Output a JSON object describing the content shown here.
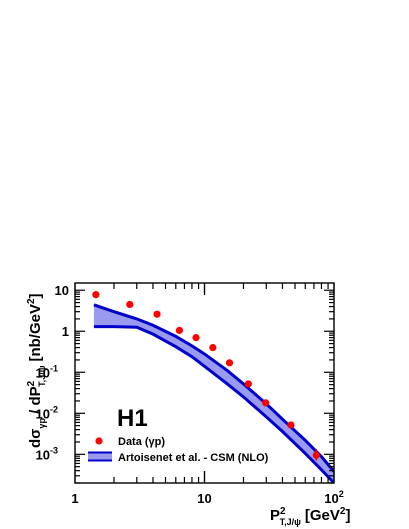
{
  "chart_data": {
    "type": "scatter",
    "title": "",
    "logo": "H1",
    "xlabel": {
      "main": "P",
      "sup": "2",
      "sub": "T,J/ψ",
      "unit": "[GeV",
      "unit_sup": "2",
      "unit_end": "]"
    },
    "ylabel": {
      "d": "d",
      "sigma": "σ",
      "sigma_sub": "γp",
      "slash": " / dP",
      "p_sup": "2",
      "p_sub": "T,J/ψ",
      "unit": "[nb/GeV",
      "unit_sup": "2",
      "unit_end": "]"
    },
    "x_scale": "log",
    "y_scale": "log",
    "xlim": [
      1,
      100
    ],
    "ylim": [
      0.0002,
      15
    ],
    "x_ticks": [
      {
        "value": 1,
        "label": "1",
        "sup": ""
      },
      {
        "value": 10,
        "label": "10",
        "sup": ""
      },
      {
        "value": 100,
        "label": "10",
        "sup": "2"
      }
    ],
    "y_ticks": [
      {
        "value": 10,
        "label": "10",
        "sup": ""
      },
      {
        "value": 1,
        "label": "1",
        "sup": ""
      },
      {
        "value": 0.1,
        "label": "10",
        "sup": "-1"
      },
      {
        "value": 0.01,
        "label": "10",
        "sup": "-2"
      },
      {
        "value": 0.001,
        "label": "10",
        "sup": "-3"
      }
    ],
    "legend": {
      "placement": "bottom-left",
      "entries": [
        {
          "label": "Data (γp)",
          "marker": "circle",
          "color": "#ff0000"
        },
        {
          "label": "Artoisenet et al. - CSM (NLO)",
          "marker": "band",
          "color": "#0000cc",
          "fill": "#9a9aee"
        }
      ]
    },
    "series": [
      {
        "name": "Data (γp)",
        "color": "#ff0000",
        "points": [
          {
            "x": 1.45,
            "y": 7.8
          },
          {
            "x": 2.65,
            "y": 4.5
          },
          {
            "x": 4.3,
            "y": 2.6
          },
          {
            "x": 6.4,
            "y": 1.05
          },
          {
            "x": 8.6,
            "y": 0.7
          },
          {
            "x": 11.6,
            "y": 0.4
          },
          {
            "x": 15.6,
            "y": 0.17
          },
          {
            "x": 21.8,
            "y": 0.052
          },
          {
            "x": 29.7,
            "y": 0.018
          },
          {
            "x": 46.5,
            "y": 0.0052,
            "y_err": [
              0.0045,
              0.006
            ]
          },
          {
            "x": 73,
            "y": 0.00095,
            "y_err": [
              0.0007,
              0.00135
            ]
          }
        ]
      },
      {
        "name": "Artoisenet et al. - CSM (NLO)",
        "type": "band",
        "color": "#0000cc",
        "fill": "#9a9aee",
        "x": [
          1.4,
          2.0,
          3.0,
          4.0,
          6.0,
          8.0,
          10.0,
          15.0,
          20.0,
          30.0,
          40.0,
          60.0,
          80.0,
          100.0
        ],
        "upper": [
          4.4,
          3.0,
          2.0,
          1.4,
          0.75,
          0.44,
          0.28,
          0.11,
          0.052,
          0.017,
          0.0072,
          0.0022,
          0.00088,
          0.00038
        ],
        "lower": [
          1.3,
          1.3,
          1.25,
          0.85,
          0.42,
          0.24,
          0.14,
          0.052,
          0.025,
          0.0082,
          0.0036,
          0.00105,
          0.00042,
          0.0002
        ]
      }
    ]
  }
}
